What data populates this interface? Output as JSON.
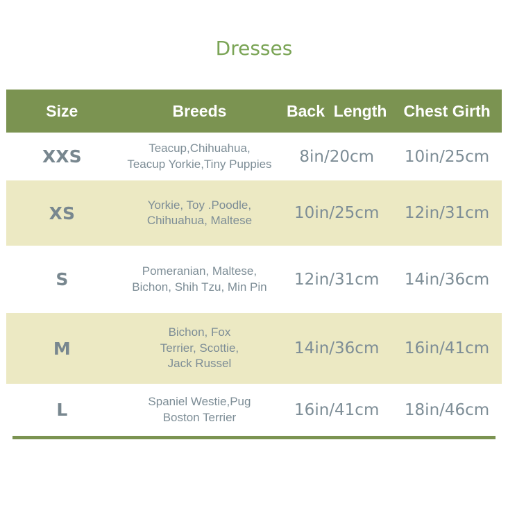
{
  "title": "Dresses",
  "table": {
    "headers": [
      "Size",
      "Breeds",
      "Back  Length",
      "Chest Girth"
    ],
    "rows": [
      {
        "size": "XXS",
        "breeds": "Teacup,Chihuahua,\nTeacup Yorkie,Tiny Puppies",
        "back_length": "8in/20cm",
        "chest_girth": "10in/25cm"
      },
      {
        "size": "XS",
        "breeds": "Yorkie, Toy .Poodle,\nChihuahua, Maltese",
        "back_length": "10in/25cm",
        "chest_girth": "12in/31cm"
      },
      {
        "size": "S",
        "breeds": "Pomeranian, Maltese,\nBichon, Shih Tzu, Min Pin",
        "back_length": "12in/31cm",
        "chest_girth": "14in/36cm"
      },
      {
        "size": "M",
        "breeds": "Bichon, Fox\nTerrier, Scottie,\nJack Russel",
        "back_length": "14in/36cm",
        "chest_girth": "16in/41cm"
      },
      {
        "size": "L",
        "breeds": "Spaniel Westie,Pug\nBoston Terrier",
        "back_length": "16in/41cm",
        "chest_girth": "18in/46cm"
      }
    ]
  },
  "chart_data": {
    "type": "table",
    "title": "Dresses",
    "columns": [
      "Size",
      "Breeds",
      "Back Length",
      "Chest Girth"
    ],
    "rows": [
      [
        "XXS",
        "Teacup,Chihuahua, Teacup Yorkie,Tiny Puppies",
        "8in/20cm",
        "10in/25cm"
      ],
      [
        "XS",
        "Yorkie, Toy .Poodle, Chihuahua, Maltese",
        "10in/25cm",
        "12in/31cm"
      ],
      [
        "S",
        "Pomeranian, Maltese, Bichon, Shih Tzu, Min Pin",
        "12in/31cm",
        "14in/36cm"
      ],
      [
        "M",
        "Bichon, Fox Terrier, Scottie, Jack Russel",
        "14in/36cm",
        "16in/41cm"
      ],
      [
        "L",
        "Spaniel Westie,Pug Boston Terrier",
        "16in/41cm",
        "18in/46cm"
      ]
    ]
  },
  "colors": {
    "title_green": "#7aa455",
    "header_green": "#7b9351",
    "row_cream": "#ece9c3",
    "text_gray": "#7d8d96"
  }
}
